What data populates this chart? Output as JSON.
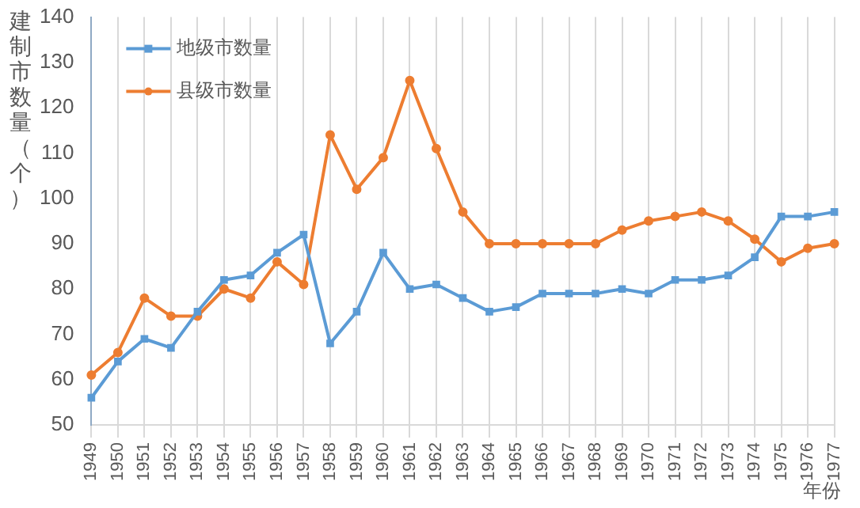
{
  "chart_data": {
    "type": "line",
    "ylabel": "建制市数量（个）",
    "xlabel": "年份",
    "categories": [
      "1949",
      "1950",
      "1951",
      "1952",
      "1953",
      "1954",
      "1955",
      "1956",
      "1957",
      "1958",
      "1959",
      "1960",
      "1961",
      "1962",
      "1963",
      "1964",
      "1965",
      "1966",
      "1967",
      "1968",
      "1969",
      "1970",
      "1971",
      "1972",
      "1973",
      "1974",
      "1975",
      "1976",
      "1977"
    ],
    "series": [
      {
        "name": "地级市数量",
        "color": "#5b9bd5",
        "marker": "square",
        "values": [
          56,
          64,
          69,
          67,
          75,
          82,
          83,
          88,
          92,
          68,
          75,
          88,
          80,
          81,
          78,
          75,
          76,
          79,
          79,
          79,
          80,
          79,
          82,
          82,
          83,
          87,
          96,
          96,
          97
        ]
      },
      {
        "name": "县级市数量",
        "color": "#ed7d31",
        "marker": "circle",
        "values": [
          61,
          66,
          78,
          74,
          74,
          80,
          78,
          86,
          81,
          114,
          102,
          109,
          126,
          111,
          97,
          90,
          90,
          90,
          90,
          90,
          93,
          95,
          96,
          97,
          95,
          91,
          86,
          89,
          90
        ]
      }
    ],
    "ylim": [
      50,
      140
    ],
    "yticks": [
      50,
      60,
      70,
      80,
      90,
      100,
      110,
      120,
      130,
      140
    ],
    "grid": "x",
    "legend": "top left",
    "line_style": "solid"
  }
}
